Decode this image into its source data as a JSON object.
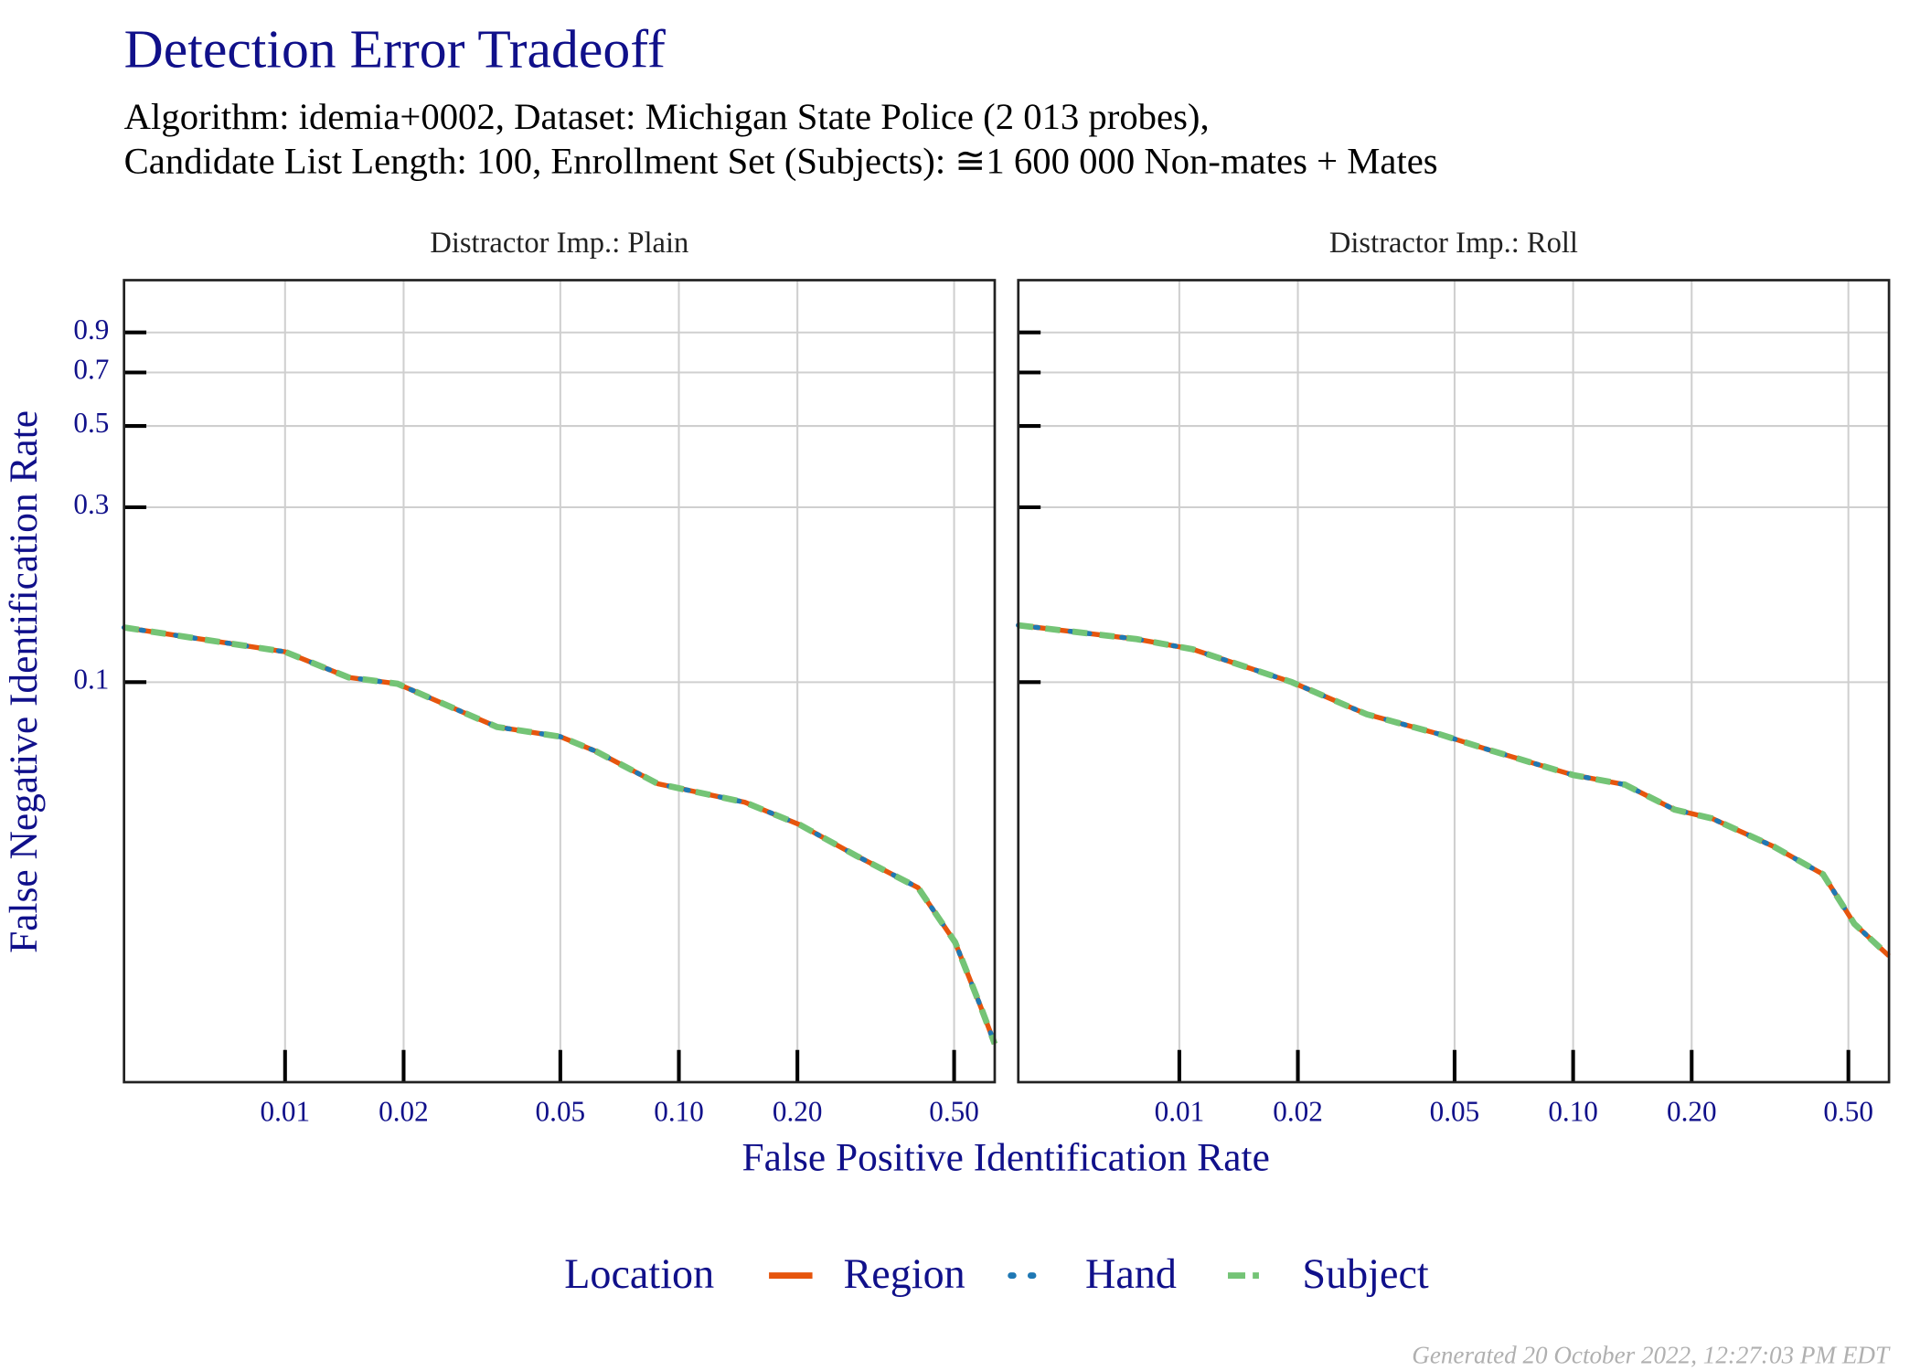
{
  "title": "Detection Error Tradeoff",
  "subtitle": [
    "Algorithm: idemia+0002, Dataset: Michigan State Police (2 013 probes),",
    "Candidate List Length: 100, Enrollment Set (Subjects): ≅1 600 000 Non-mates + Mates"
  ],
  "x_label": "False Positive Identification Rate",
  "y_label": "False Negative Identification Rate",
  "legend_title": "Location",
  "footer": "Generated 20 October 2022, 12:27:03 PM EDT",
  "chart_data": [
    {
      "type": "line",
      "title": "Distractor Imp.: Plain",
      "log_x": true,
      "log_y": true,
      "grid": true,
      "xlim": [
        0.0039,
        0.634
      ],
      "ylim": [
        0.0081,
        1.25
      ],
      "xticks": [
        0.01,
        0.02,
        0.05,
        {
          "value": 0.1,
          "label": "0.10"
        },
        {
          "value": 0.2,
          "label": "0.20"
        },
        {
          "value": 0.5,
          "label": "0.50"
        }
      ],
      "yticks": [
        0.1,
        0.3,
        0.5,
        0.7,
        0.9
      ],
      "x": [
        0.0039,
        0.01,
        0.0145,
        0.0193,
        0.0277,
        0.0345,
        0.05,
        0.0615,
        0.0885,
        0.147,
        0.203,
        0.282,
        0.405,
        0.503,
        0.581,
        0.634
      ],
      "series": [
        {
          "name": "Region",
          "color": "#e6550d",
          "line_style": "solid",
          "values": [
            0.141,
            0.121,
            0.103,
            0.099,
            0.0836,
            0.0755,
            0.071,
            0.0648,
            0.0528,
            0.047,
            0.0408,
            0.0336,
            0.0275,
            0.0195,
            0.0132,
            0.0103
          ]
        },
        {
          "name": "Hand",
          "color": "#1f78b4",
          "line_style": "dotted",
          "values": [
            0.141,
            0.121,
            0.103,
            0.099,
            0.0836,
            0.0755,
            0.071,
            0.0648,
            0.0528,
            0.047,
            0.0408,
            0.0336,
            0.0275,
            0.0195,
            0.0132,
            0.0103
          ]
        },
        {
          "name": "Subject",
          "color": "#74c476",
          "line_style": "dashed",
          "values": [
            0.141,
            0.121,
            0.103,
            0.099,
            0.0836,
            0.0755,
            0.071,
            0.0648,
            0.0528,
            0.047,
            0.0408,
            0.0336,
            0.0275,
            0.0195,
            0.0132,
            0.0103
          ]
        }
      ]
    },
    {
      "type": "line",
      "title": "Distractor Imp.: Roll",
      "log_x": true,
      "log_y": true,
      "grid": true,
      "xlim": [
        0.0039,
        0.634
      ],
      "ylim": [
        0.0081,
        1.25
      ],
      "xticks": [
        0.01,
        0.02,
        0.05,
        {
          "value": 0.1,
          "label": "0.10"
        },
        {
          "value": 0.2,
          "label": "0.20"
        },
        {
          "value": 0.5,
          "label": "0.50"
        }
      ],
      "x": [
        0.0039,
        0.0078,
        0.0108,
        0.0193,
        0.0299,
        0.046,
        0.0615,
        0.1,
        0.1355,
        0.181,
        0.225,
        0.323,
        0.431,
        0.518,
        0.634
      ],
      "series": [
        {
          "name": "Region",
          "color": "#e6550d",
          "line_style": "solid",
          "values": [
            0.143,
            0.131,
            0.123,
            0.1,
            0.0817,
            0.072,
            0.0652,
            0.0558,
            0.0525,
            0.0449,
            0.0425,
            0.0356,
            0.0299,
            0.0219,
            0.0179
          ]
        },
        {
          "name": "Hand",
          "color": "#1f78b4",
          "line_style": "dotted",
          "values": [
            0.143,
            0.131,
            0.123,
            0.1,
            0.0817,
            0.072,
            0.0652,
            0.0558,
            0.0525,
            0.0449,
            0.0425,
            0.0356,
            0.0299,
            0.0219,
            0.0179
          ]
        },
        {
          "name": "Subject",
          "color": "#74c476",
          "line_style": "dashed",
          "values": [
            0.143,
            0.131,
            0.123,
            0.1,
            0.0817,
            0.072,
            0.0652,
            0.0558,
            0.0525,
            0.0449,
            0.0425,
            0.0356,
            0.0299,
            0.0219,
            0.0179
          ]
        }
      ]
    }
  ]
}
